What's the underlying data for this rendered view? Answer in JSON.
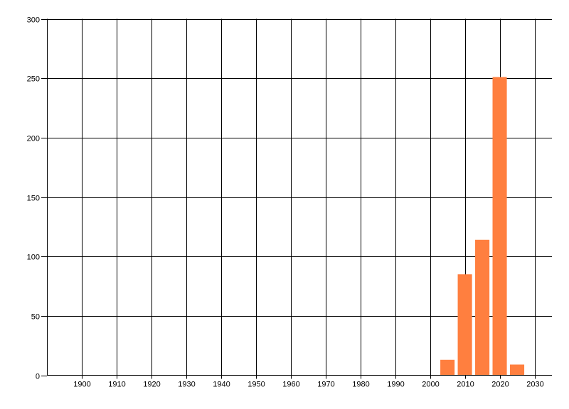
{
  "chart_data": {
    "type": "bar",
    "title": "",
    "xlabel": "",
    "ylabel": "",
    "x": [
      2005,
      2010,
      2015,
      2020,
      2025
    ],
    "values": [
      13,
      85,
      114,
      251,
      9
    ],
    "xlim": [
      1890,
      2035
    ],
    "ylim": [
      0,
      300
    ],
    "xticks": [
      1900,
      1910,
      1920,
      1930,
      1940,
      1950,
      1960,
      1970,
      1980,
      1990,
      2000,
      2010,
      2020,
      2030
    ],
    "yticks": [
      0,
      50,
      100,
      150,
      200,
      250,
      300
    ],
    "grid": true,
    "legend": "none",
    "bar_color": "#FF7F3F",
    "grid_color": "#000000"
  }
}
